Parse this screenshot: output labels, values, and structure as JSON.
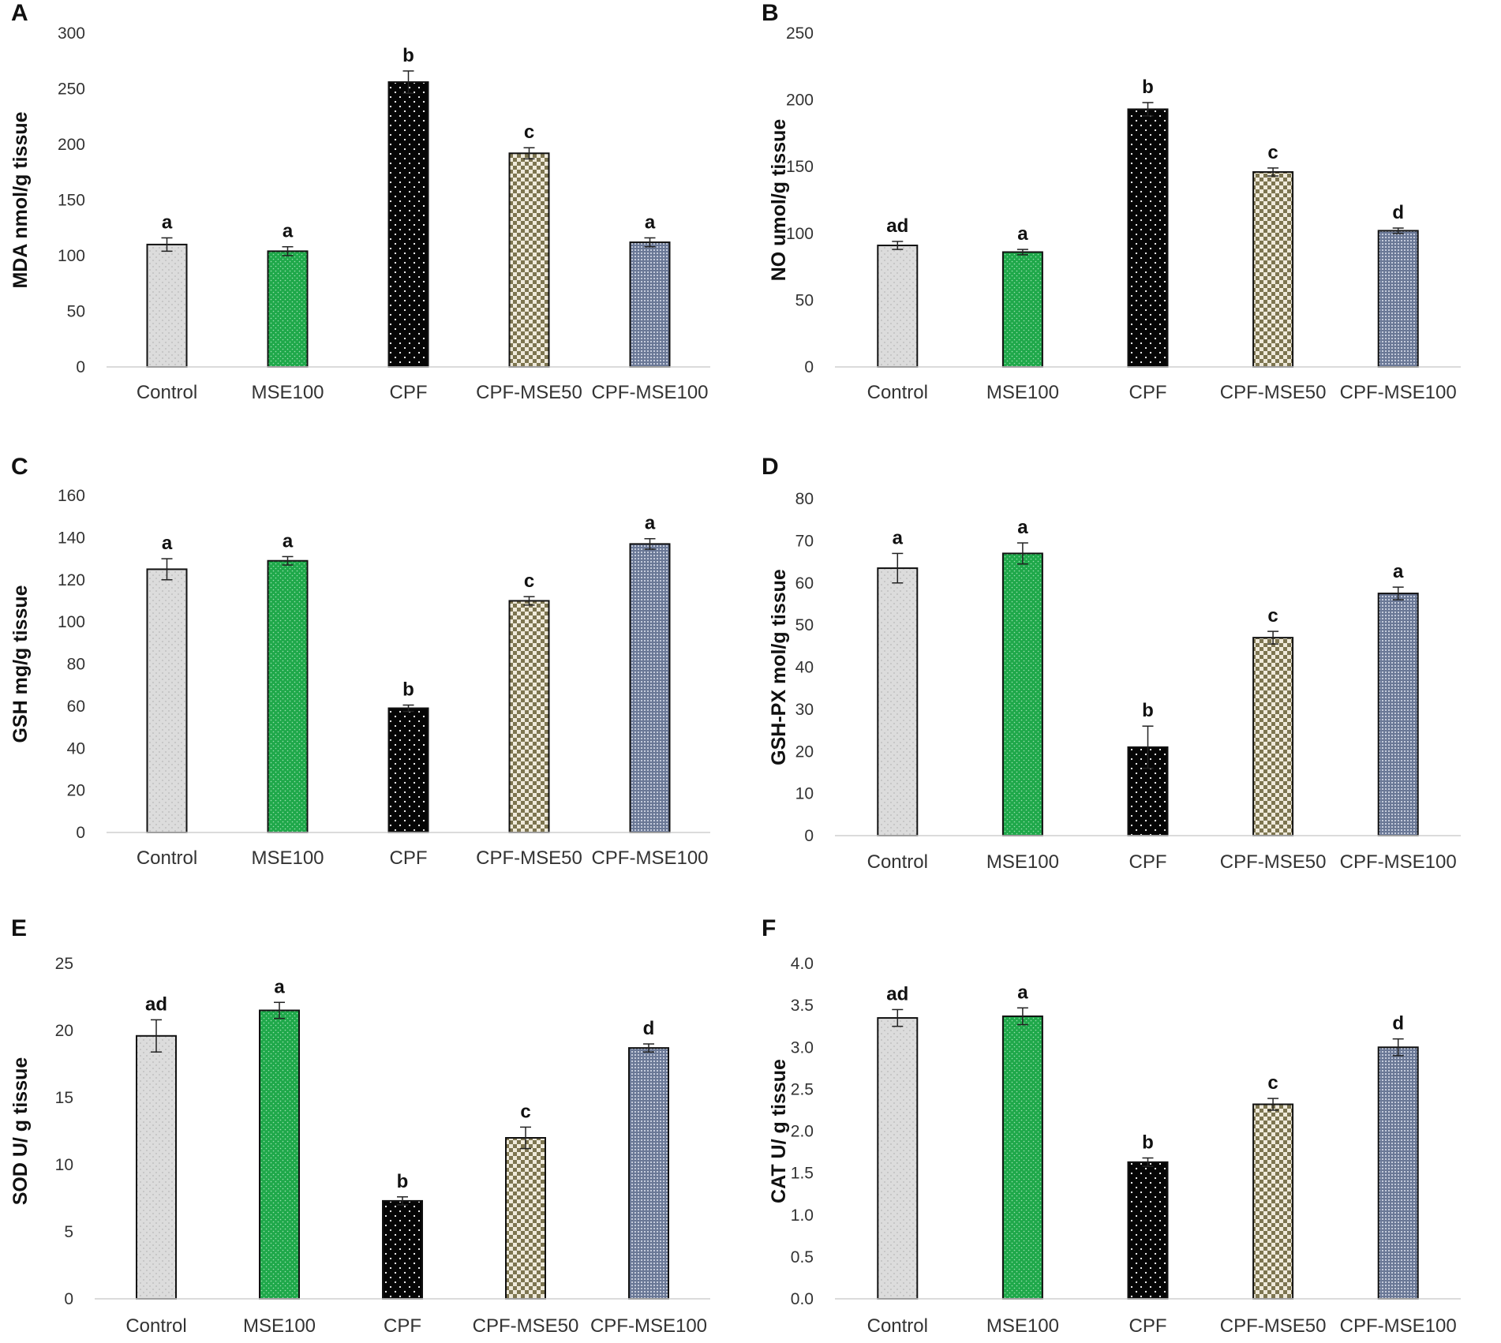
{
  "figure": {
    "colors": {
      "Control": "#dcdcdc",
      "MSE100": "#1fa84a",
      "CPF": "#050505",
      "CPF-MSE50": "#7d7550",
      "CPF-MSE100": "#6a7896"
    }
  },
  "chart_data": [
    {
      "panel": "A",
      "type": "bar",
      "ylabel": "MDA nmol/g tissue",
      "ylim": [
        0,
        300
      ],
      "yticks": [
        "0",
        "50",
        "100",
        "150",
        "200",
        "250",
        "300"
      ],
      "categories": [
        "Control",
        "MSE100",
        "CPF",
        "CPF-MSE50",
        "CPF-MSE100"
      ],
      "values": [
        110,
        104,
        256,
        192,
        112
      ],
      "errors": [
        6,
        4,
        10,
        5,
        4
      ],
      "letters": [
        "a",
        "a",
        "b",
        "c",
        "a"
      ]
    },
    {
      "panel": "B",
      "type": "bar",
      "ylabel": "NO umol/g tissue",
      "ylim": [
        0,
        250
      ],
      "yticks": [
        "0",
        "50",
        "100",
        "150",
        "200",
        "250"
      ],
      "categories": [
        "Control",
        "MSE100",
        "CPF",
        "CPF-MSE50",
        "CPF-MSE100"
      ],
      "values": [
        91,
        86,
        193,
        146,
        102
      ],
      "errors": [
        3,
        2,
        5,
        3,
        2
      ],
      "letters": [
        "ad",
        "a",
        "b",
        "c",
        "d"
      ]
    },
    {
      "panel": "C",
      "type": "bar",
      "ylabel": "GSH mg/g tissue",
      "ylim": [
        0,
        160
      ],
      "yticks": [
        "0",
        "20",
        "40",
        "60",
        "80",
        "100",
        "120",
        "140",
        "160"
      ],
      "categories": [
        "Control",
        "MSE100",
        "CPF",
        "CPF-MSE50",
        "CPF-MSE100"
      ],
      "values": [
        125,
        129,
        59,
        110,
        137
      ],
      "errors": [
        5,
        2,
        1.5,
        2,
        2.5
      ],
      "letters": [
        "a",
        "a",
        "b",
        "c",
        "a"
      ]
    },
    {
      "panel": "D",
      "type": "bar",
      "ylabel": "GSH-PX mol/g tissue",
      "ylim": [
        0,
        80
      ],
      "yticks": [
        "0",
        "10",
        "20",
        "30",
        "40",
        "50",
        "60",
        "70",
        "80"
      ],
      "categories": [
        "Control",
        "MSE100",
        "CPF",
        "CPF-MSE50",
        "CPF-MSE100"
      ],
      "values": [
        63.5,
        67,
        21,
        47,
        57.5
      ],
      "errors": [
        3.5,
        2.5,
        5,
        1.5,
        1.5
      ],
      "letters": [
        "a",
        "a",
        "b",
        "c",
        "a"
      ]
    },
    {
      "panel": "E",
      "type": "bar",
      "ylabel": "SOD U/ g tissue",
      "ylim": [
        0,
        25
      ],
      "yticks": [
        "0",
        "5",
        "10",
        "15",
        "20",
        "25"
      ],
      "categories": [
        "Control",
        "MSE100",
        "CPF",
        "CPF-MSE50",
        "CPF-MSE100"
      ],
      "values": [
        19.6,
        21.5,
        7.3,
        12,
        18.7
      ],
      "errors": [
        1.2,
        0.6,
        0.3,
        0.8,
        0.3
      ],
      "letters": [
        "ad",
        "a",
        "b",
        "c",
        "d"
      ]
    },
    {
      "panel": "F",
      "type": "bar",
      "ylabel": "CAT U/ g tissue",
      "ylim": [
        0,
        4
      ],
      "yticks": [
        "0.0",
        "0.5",
        "1.0",
        "1.5",
        "2.0",
        "2.5",
        "3.0",
        "3.5",
        "4.0"
      ],
      "categories": [
        "Control",
        "MSE100",
        "CPF",
        "CPF-MSE50",
        "CPF-MSE100"
      ],
      "values": [
        3.35,
        3.37,
        1.63,
        2.32,
        3.0
      ],
      "errors": [
        0.1,
        0.1,
        0.05,
        0.07,
        0.1
      ],
      "letters": [
        "ad",
        "a",
        "b",
        "c",
        "d"
      ]
    }
  ]
}
